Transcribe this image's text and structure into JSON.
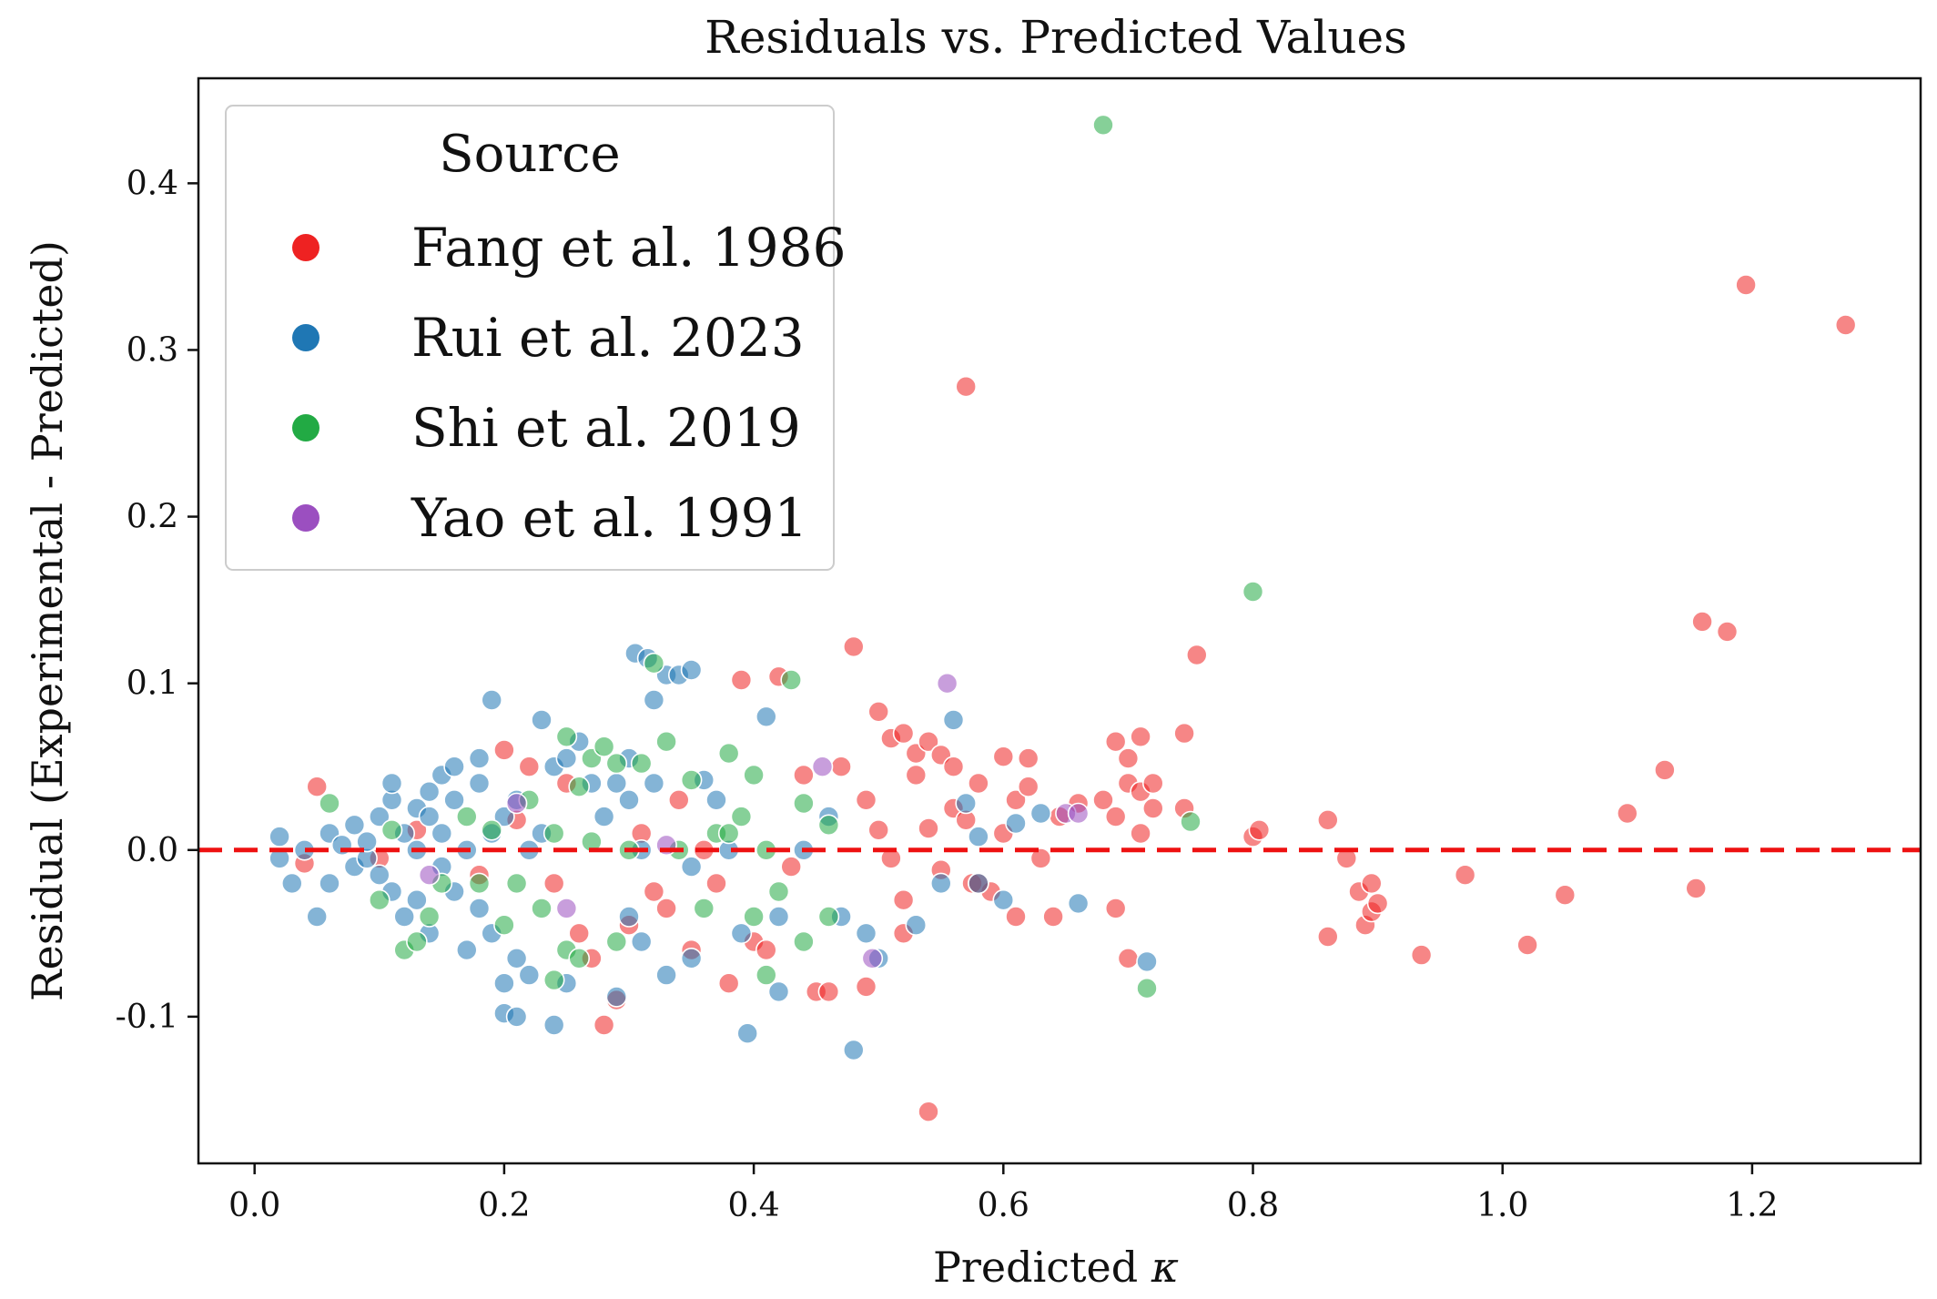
{
  "chart_data": {
    "type": "scatter",
    "title": "Residuals vs. Predicted Values",
    "xlabel": "Predicted ",
    "xlabel_symbol": "κ",
    "ylabel": "Residual (Experimental - Predicted)",
    "xlim": [
      -0.045,
      1.335
    ],
    "ylim": [
      -0.188,
      0.463
    ],
    "xticks": [
      0.0,
      0.2,
      0.4,
      0.6,
      0.8,
      1.0,
      1.2
    ],
    "xtick_labels": [
      "0.0",
      "0.2",
      "0.4",
      "0.6",
      "0.8",
      "1.0",
      "1.2"
    ],
    "yticks": [
      -0.1,
      0.0,
      0.1,
      0.2,
      0.3,
      0.4
    ],
    "ytick_labels": [
      "-0.1",
      "0.0",
      "0.1",
      "0.2",
      "0.3",
      "0.4"
    ],
    "reference_line": {
      "y": 0.0,
      "style": "dashed",
      "color": "#ee1111"
    },
    "legend": {
      "title": "Source",
      "position": "upper-left"
    },
    "series": [
      {
        "name": "Fang et al. 1986",
        "color": "#ee2222",
        "points": [
          [
            0.05,
            0.038
          ],
          [
            0.04,
            -0.008
          ],
          [
            0.1,
            -0.005
          ],
          [
            0.13,
            0.012
          ],
          [
            0.18,
            -0.015
          ],
          [
            0.2,
            0.06
          ],
          [
            0.21,
            0.018
          ],
          [
            0.22,
            0.05
          ],
          [
            0.24,
            -0.02
          ],
          [
            0.25,
            0.04
          ],
          [
            0.26,
            -0.05
          ],
          [
            0.27,
            -0.065
          ],
          [
            0.28,
            -0.105
          ],
          [
            0.29,
            -0.09
          ],
          [
            0.3,
            -0.045
          ],
          [
            0.31,
            0.01
          ],
          [
            0.32,
            -0.025
          ],
          [
            0.33,
            -0.035
          ],
          [
            0.35,
            -0.06
          ],
          [
            0.34,
            0.03
          ],
          [
            0.36,
            0.0
          ],
          [
            0.37,
            -0.02
          ],
          [
            0.38,
            -0.08
          ],
          [
            0.39,
            0.102
          ],
          [
            0.4,
            -0.055
          ],
          [
            0.41,
            -0.06
          ],
          [
            0.42,
            0.104
          ],
          [
            0.43,
            -0.01
          ],
          [
            0.44,
            0.045
          ],
          [
            0.45,
            -0.085
          ],
          [
            0.46,
            -0.085
          ],
          [
            0.47,
            0.05
          ],
          [
            0.48,
            0.122
          ],
          [
            0.49,
            -0.082
          ],
          [
            0.5,
            0.083
          ],
          [
            0.49,
            0.03
          ],
          [
            0.5,
            0.012
          ],
          [
            0.51,
            0.067
          ],
          [
            0.51,
            -0.005
          ],
          [
            0.52,
            0.07
          ],
          [
            0.52,
            -0.03
          ],
          [
            0.53,
            0.058
          ],
          [
            0.53,
            0.045
          ],
          [
            0.54,
            0.065
          ],
          [
            0.54,
            0.013
          ],
          [
            0.55,
            0.057
          ],
          [
            0.55,
            -0.012
          ],
          [
            0.56,
            0.05
          ],
          [
            0.56,
            0.025
          ],
          [
            0.57,
            0.018
          ],
          [
            0.57,
            0.278
          ],
          [
            0.575,
            -0.02
          ],
          [
            0.58,
            0.04
          ],
          [
            0.59,
            -0.025
          ],
          [
            0.6,
            0.056
          ],
          [
            0.6,
            0.01
          ],
          [
            0.61,
            0.03
          ],
          [
            0.61,
            -0.04
          ],
          [
            0.62,
            0.055
          ],
          [
            0.62,
            0.038
          ],
          [
            0.63,
            -0.005
          ],
          [
            0.64,
            -0.04
          ],
          [
            0.645,
            0.02
          ],
          [
            0.66,
            0.028
          ],
          [
            0.54,
            -0.157
          ],
          [
            0.52,
            -0.05
          ],
          [
            0.58,
            -0.02
          ],
          [
            0.69,
            -0.035
          ],
          [
            0.69,
            0.065
          ],
          [
            0.7,
            0.055
          ],
          [
            0.7,
            0.04
          ],
          [
            0.71,
            0.068
          ],
          [
            0.71,
            0.035
          ],
          [
            0.7,
            -0.065
          ],
          [
            0.71,
            0.01
          ],
          [
            0.72,
            0.04
          ],
          [
            0.72,
            0.025
          ],
          [
            0.745,
            0.07
          ],
          [
            0.745,
            0.025
          ],
          [
            0.755,
            0.117
          ],
          [
            0.8,
            0.008
          ],
          [
            0.805,
            0.012
          ],
          [
            0.86,
            0.018
          ],
          [
            0.86,
            -0.052
          ],
          [
            0.875,
            -0.005
          ],
          [
            0.885,
            -0.025
          ],
          [
            0.895,
            -0.02
          ],
          [
            0.89,
            -0.045
          ],
          [
            0.895,
            -0.037
          ],
          [
            0.9,
            -0.032
          ],
          [
            0.935,
            -0.063
          ],
          [
            0.97,
            -0.015
          ],
          [
            1.02,
            -0.057
          ],
          [
            1.05,
            -0.027
          ],
          [
            1.1,
            0.022
          ],
          [
            1.13,
            0.048
          ],
          [
            1.155,
            -0.023
          ],
          [
            1.16,
            0.137
          ],
          [
            1.18,
            0.131
          ],
          [
            1.195,
            0.339
          ],
          [
            1.275,
            0.315
          ],
          [
            0.68,
            0.03
          ],
          [
            0.69,
            0.02
          ]
        ]
      },
      {
        "name": "Rui et al. 2023",
        "color": "#1f77b4",
        "points": [
          [
            0.02,
            -0.005
          ],
          [
            0.02,
            0.008
          ],
          [
            0.03,
            -0.02
          ],
          [
            0.04,
            0.0
          ],
          [
            0.05,
            -0.04
          ],
          [
            0.06,
            0.01
          ],
          [
            0.06,
            -0.02
          ],
          [
            0.07,
            0.003
          ],
          [
            0.08,
            -0.01
          ],
          [
            0.08,
            0.015
          ],
          [
            0.09,
            -0.005
          ],
          [
            0.09,
            0.005
          ],
          [
            0.1,
            0.02
          ],
          [
            0.1,
            -0.015
          ],
          [
            0.11,
            0.03
          ],
          [
            0.11,
            0.04
          ],
          [
            0.11,
            -0.025
          ],
          [
            0.12,
            0.01
          ],
          [
            0.12,
            -0.04
          ],
          [
            0.13,
            0.025
          ],
          [
            0.13,
            -0.03
          ],
          [
            0.13,
            0.0
          ],
          [
            0.14,
            0.02
          ],
          [
            0.14,
            -0.05
          ],
          [
            0.14,
            0.035
          ],
          [
            0.15,
            0.045
          ],
          [
            0.15,
            -0.01
          ],
          [
            0.15,
            0.01
          ],
          [
            0.16,
            0.05
          ],
          [
            0.16,
            -0.025
          ],
          [
            0.16,
            0.03
          ],
          [
            0.17,
            0.0
          ],
          [
            0.17,
            -0.06
          ],
          [
            0.18,
            0.04
          ],
          [
            0.18,
            0.055
          ],
          [
            0.18,
            -0.035
          ],
          [
            0.19,
            0.09
          ],
          [
            0.19,
            0.01
          ],
          [
            0.19,
            -0.05
          ],
          [
            0.2,
            -0.08
          ],
          [
            0.2,
            -0.098
          ],
          [
            0.2,
            0.02
          ],
          [
            0.21,
            -0.065
          ],
          [
            0.21,
            0.03
          ],
          [
            0.21,
            -0.1
          ],
          [
            0.22,
            -0.075
          ],
          [
            0.22,
            0.0
          ],
          [
            0.23,
            0.078
          ],
          [
            0.23,
            0.01
          ],
          [
            0.24,
            -0.105
          ],
          [
            0.24,
            0.05
          ],
          [
            0.25,
            -0.08
          ],
          [
            0.25,
            0.055
          ],
          [
            0.26,
            0.065
          ],
          [
            0.27,
            0.04
          ],
          [
            0.28,
            0.02
          ],
          [
            0.29,
            -0.088
          ],
          [
            0.29,
            0.04
          ],
          [
            0.3,
            0.055
          ],
          [
            0.3,
            -0.04
          ],
          [
            0.305,
            0.118
          ],
          [
            0.31,
            0.0
          ],
          [
            0.315,
            0.115
          ],
          [
            0.32,
            0.09
          ],
          [
            0.33,
            0.105
          ],
          [
            0.32,
            0.04
          ],
          [
            0.31,
            -0.055
          ],
          [
            0.33,
            -0.075
          ],
          [
            0.34,
            0.105
          ],
          [
            0.35,
            0.108
          ],
          [
            0.35,
            -0.065
          ],
          [
            0.36,
            0.042
          ],
          [
            0.37,
            0.03
          ],
          [
            0.38,
            0.0
          ],
          [
            0.39,
            -0.05
          ],
          [
            0.395,
            -0.11
          ],
          [
            0.41,
            0.08
          ],
          [
            0.42,
            -0.04
          ],
          [
            0.42,
            -0.085
          ],
          [
            0.44,
            0.0
          ],
          [
            0.46,
            0.02
          ],
          [
            0.47,
            -0.04
          ],
          [
            0.48,
            -0.12
          ],
          [
            0.49,
            -0.05
          ],
          [
            0.5,
            -0.065
          ],
          [
            0.53,
            -0.045
          ],
          [
            0.55,
            -0.02
          ],
          [
            0.56,
            0.078
          ],
          [
            0.57,
            0.028
          ],
          [
            0.58,
            0.008
          ],
          [
            0.6,
            -0.03
          ],
          [
            0.61,
            0.016
          ],
          [
            0.63,
            0.022
          ],
          [
            0.66,
            -0.032
          ],
          [
            0.715,
            -0.067
          ],
          [
            0.58,
            -0.02
          ],
          [
            0.35,
            -0.01
          ],
          [
            0.3,
            0.03
          ]
        ]
      },
      {
        "name": "Shi et al. 2019",
        "color": "#22aa44",
        "points": [
          [
            0.06,
            0.028
          ],
          [
            0.1,
            -0.03
          ],
          [
            0.11,
            0.012
          ],
          [
            0.12,
            -0.06
          ],
          [
            0.13,
            -0.055
          ],
          [
            0.14,
            -0.04
          ],
          [
            0.15,
            -0.02
          ],
          [
            0.17,
            0.02
          ],
          [
            0.18,
            -0.02
          ],
          [
            0.19,
            0.012
          ],
          [
            0.2,
            -0.045
          ],
          [
            0.21,
            -0.02
          ],
          [
            0.22,
            0.03
          ],
          [
            0.23,
            -0.035
          ],
          [
            0.24,
            0.01
          ],
          [
            0.24,
            -0.078
          ],
          [
            0.25,
            0.068
          ],
          [
            0.25,
            -0.06
          ],
          [
            0.26,
            0.038
          ],
          [
            0.26,
            -0.065
          ],
          [
            0.27,
            0.005
          ],
          [
            0.27,
            0.055
          ],
          [
            0.28,
            0.062
          ],
          [
            0.29,
            0.052
          ],
          [
            0.29,
            -0.055
          ],
          [
            0.3,
            0.0
          ],
          [
            0.31,
            0.052
          ],
          [
            0.32,
            0.112
          ],
          [
            0.33,
            0.065
          ],
          [
            0.34,
            0.0
          ],
          [
            0.35,
            0.042
          ],
          [
            0.36,
            -0.035
          ],
          [
            0.37,
            0.01
          ],
          [
            0.38,
            0.058
          ],
          [
            0.39,
            0.02
          ],
          [
            0.4,
            0.045
          ],
          [
            0.4,
            -0.04
          ],
          [
            0.41,
            0.0
          ],
          [
            0.42,
            -0.025
          ],
          [
            0.43,
            0.102
          ],
          [
            0.44,
            0.028
          ],
          [
            0.44,
            -0.055
          ],
          [
            0.46,
            0.015
          ],
          [
            0.46,
            -0.04
          ],
          [
            0.68,
            0.435
          ],
          [
            0.715,
            -0.083
          ],
          [
            0.75,
            0.017
          ],
          [
            0.8,
            0.155
          ],
          [
            0.41,
            -0.075
          ],
          [
            0.38,
            0.01
          ]
        ]
      },
      {
        "name": "Yao et al. 1991",
        "color": "#9b4fc0",
        "points": [
          [
            0.14,
            -0.015
          ],
          [
            0.21,
            0.028
          ],
          [
            0.25,
            -0.035
          ],
          [
            0.33,
            0.003
          ],
          [
            0.455,
            0.05
          ],
          [
            0.495,
            -0.065
          ],
          [
            0.555,
            0.1
          ],
          [
            0.65,
            0.022
          ],
          [
            0.66,
            0.022
          ]
        ]
      }
    ]
  }
}
